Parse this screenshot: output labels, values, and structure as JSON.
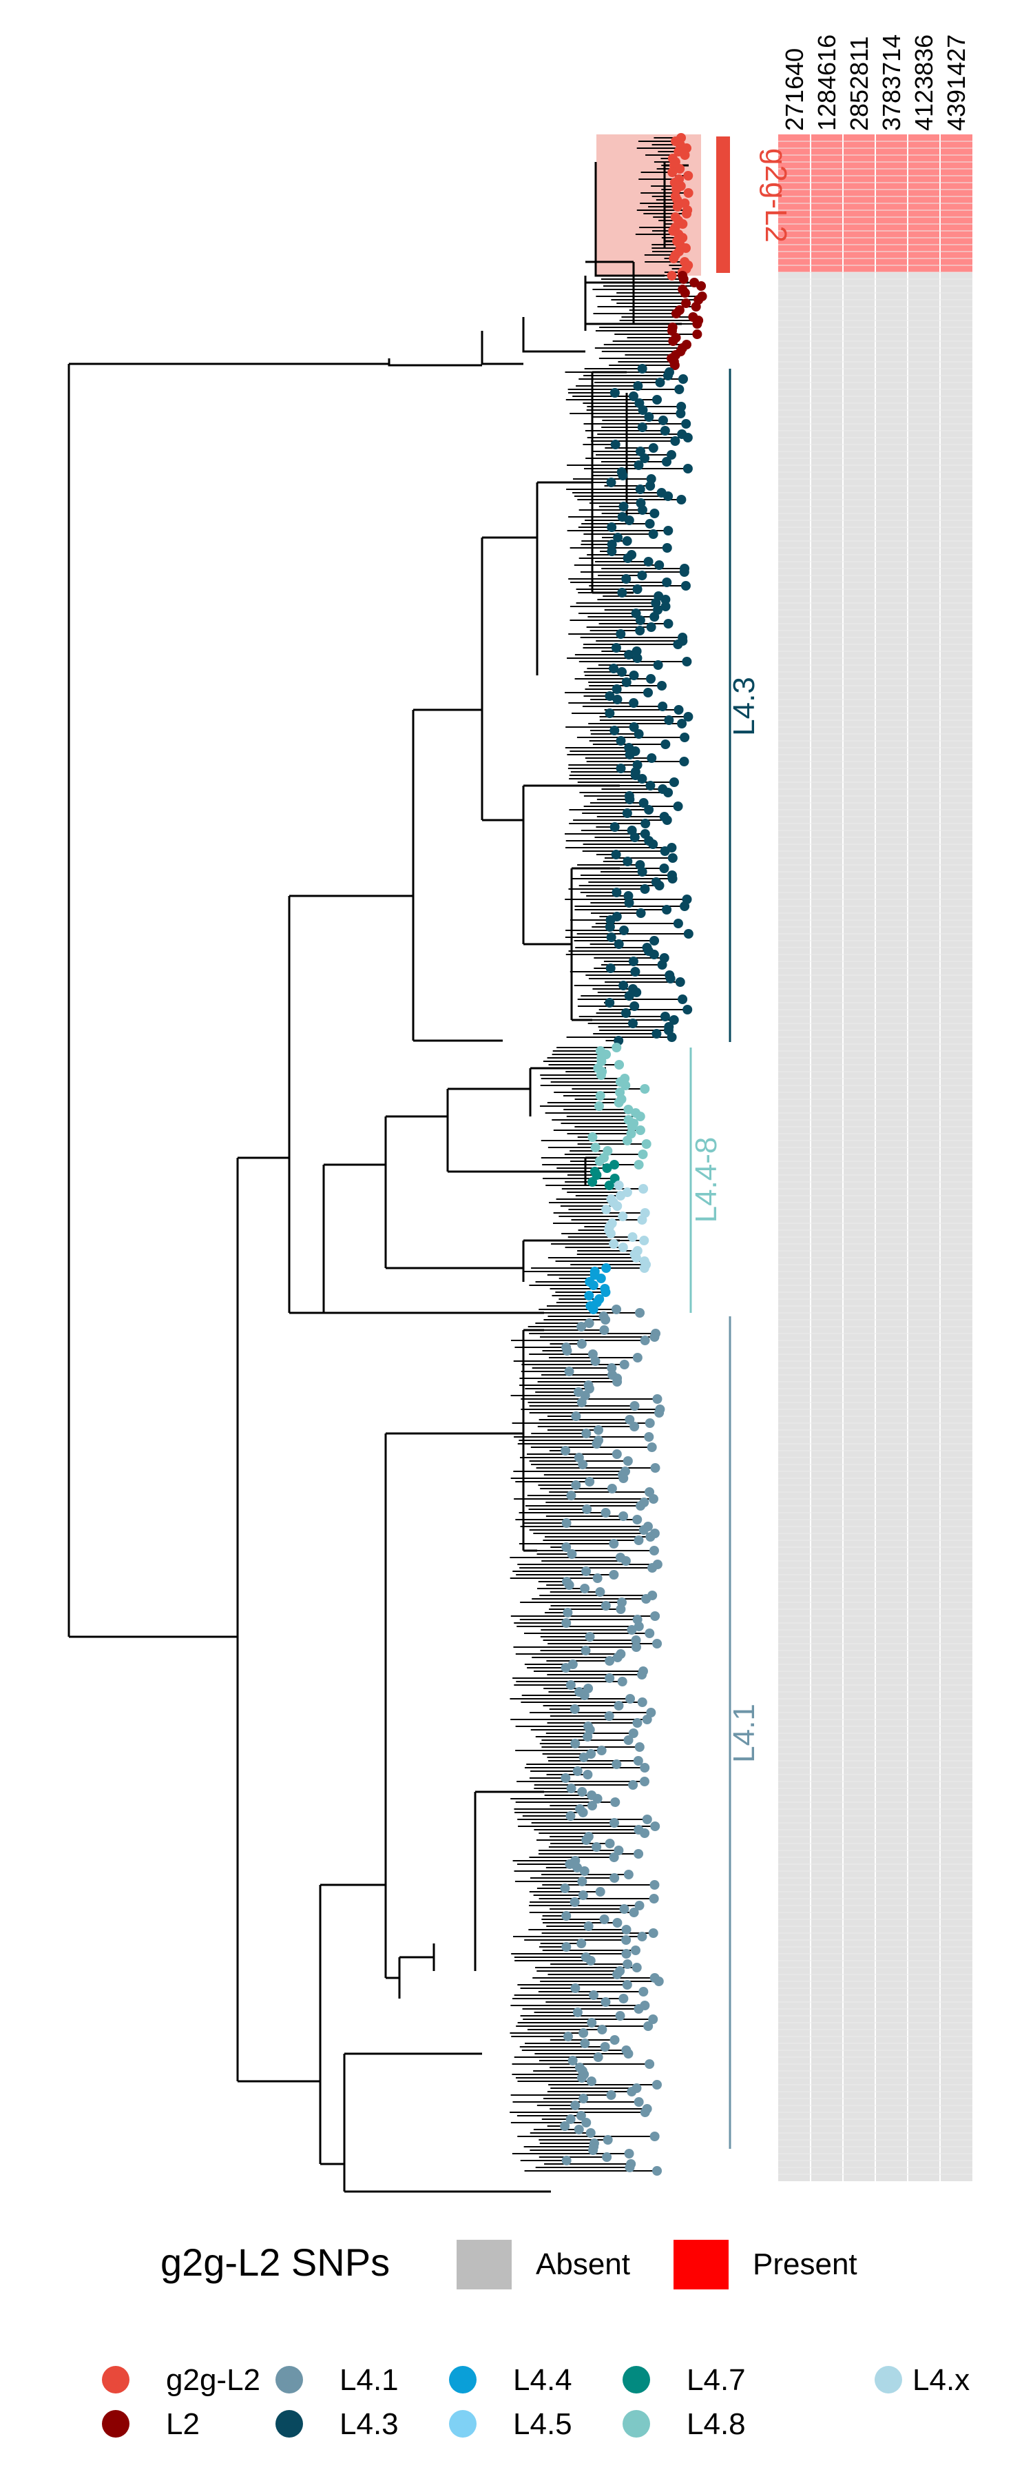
{
  "snp_columns": [
    "271640",
    "1284616",
    "2852811",
    "3783714",
    "4123836",
    "4391427"
  ],
  "clades": [
    {
      "key": "g2g-L2",
      "label": "g2g-L2",
      "color": "#e8493a"
    },
    {
      "key": "L4.3",
      "label": "L4.3",
      "color": "#08485e"
    },
    {
      "key": "L4.4-8",
      "label": "L4.4-8",
      "color": "#7ec8c6"
    },
    {
      "key": "L4.1",
      "label": "L4.1",
      "color": "#6e95a8"
    }
  ],
  "legend_snps": {
    "title": "g2g-L2 SNPs",
    "items": [
      {
        "label": "Absent",
        "color": "#bdbdbd"
      },
      {
        "label": "Present",
        "color": "#ff0000"
      }
    ]
  },
  "legend_lineages": [
    {
      "label": "g2g-L2",
      "color": "#e8493a"
    },
    {
      "label": "L2",
      "color": "#8b0000"
    },
    {
      "label": "L4.1",
      "color": "#6e95a8"
    },
    {
      "label": "L4.3",
      "color": "#08485e"
    },
    {
      "label": "L4.4",
      "color": "#0a9fd8"
    },
    {
      "label": "L4.5",
      "color": "#7fd1f5"
    },
    {
      "label": "L4.7",
      "color": "#028a80"
    },
    {
      "label": "L4.8",
      "color": "#7ec8c6"
    },
    {
      "label": "L4.x",
      "color": "#add8e6"
    }
  ]
}
